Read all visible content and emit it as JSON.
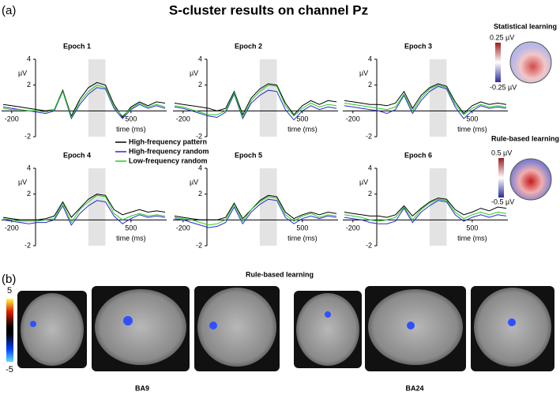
{
  "title": "S-cluster results on channel Pz",
  "panel_labels": [
    "(a)",
    "(b)"
  ],
  "chart_data": [
    {
      "type": "line",
      "title": "Epoch 1",
      "y_label": "µV",
      "x_label": "time (ms)",
      "x": [
        -250,
        -200,
        -150,
        -100,
        -50,
        0,
        50,
        100,
        150,
        200,
        250,
        300,
        350,
        400,
        450,
        500,
        550,
        600,
        650,
        700
      ],
      "series": [
        {
          "color": "#000000",
          "values": [
            0.5,
            0.4,
            0.3,
            0.2,
            0.1,
            0.0,
            0.1,
            1.6,
            -0.4,
            0.9,
            1.8,
            2.2,
            2.0,
            0.5,
            -0.5,
            0.3,
            0.7,
            0.4,
            0.7,
            0.6
          ]
        },
        {
          "color": "#2a2ad0",
          "values": [
            0.3,
            0.2,
            0.1,
            0.0,
            -0.1,
            -0.2,
            0.0,
            1.5,
            -0.6,
            0.5,
            1.3,
            1.8,
            1.7,
            0.2,
            -0.6,
            0.1,
            0.5,
            0.2,
            0.4,
            0.2
          ]
        },
        {
          "color": "#22cc22",
          "values": [
            0.2,
            0.1,
            0.1,
            0.0,
            0.0,
            -0.1,
            0.1,
            1.5,
            -0.5,
            0.7,
            1.5,
            2.0,
            1.8,
            0.3,
            -0.4,
            0.2,
            0.6,
            0.3,
            0.5,
            0.3
          ]
        }
      ],
      "xlim": [
        -250,
        700
      ],
      "ylim": [
        -2,
        4
      ],
      "xticks": [
        -200,
        500
      ],
      "yticks": [
        -2,
        2,
        4
      ],
      "shaded": [
        250,
        350
      ]
    },
    {
      "type": "line",
      "title": "Epoch 2",
      "y_label": "µV",
      "x_label": "time (ms)",
      "x": [
        -250,
        -200,
        -150,
        -100,
        -50,
        0,
        50,
        100,
        150,
        200,
        250,
        300,
        350,
        400,
        450,
        500,
        550,
        600,
        650,
        700
      ],
      "series": [
        {
          "color": "#000000",
          "values": [
            0.6,
            0.5,
            0.4,
            0.3,
            0.2,
            0.0,
            0.2,
            1.5,
            -0.3,
            1.0,
            1.7,
            2.1,
            2.0,
            0.6,
            -0.3,
            0.4,
            0.8,
            0.5,
            0.8,
            0.7
          ]
        },
        {
          "color": "#2a2ad0",
          "values": [
            0.3,
            0.2,
            0.0,
            -0.2,
            -0.4,
            -0.5,
            -0.1,
            1.3,
            -0.6,
            0.6,
            1.2,
            1.6,
            1.5,
            0.1,
            -0.7,
            0.0,
            0.4,
            0.1,
            0.3,
            0.2
          ]
        },
        {
          "color": "#22cc22",
          "values": [
            0.4,
            0.3,
            0.1,
            -0.1,
            -0.3,
            -0.3,
            0.0,
            1.4,
            -0.5,
            0.8,
            1.5,
            2.0,
            1.9,
            0.4,
            -0.4,
            0.2,
            0.6,
            0.3,
            0.5,
            0.4
          ]
        }
      ],
      "xlim": [
        -250,
        700
      ],
      "ylim": [
        -2,
        4
      ],
      "xticks": [
        -200,
        500
      ],
      "yticks": [
        -2,
        2,
        4
      ],
      "shaded": [
        250,
        350
      ]
    },
    {
      "type": "line",
      "title": "Epoch 3",
      "y_label": "µV",
      "x_label": "time (ms)",
      "x": [
        -250,
        -200,
        -150,
        -100,
        -50,
        0,
        50,
        100,
        150,
        200,
        250,
        300,
        350,
        400,
        450,
        500,
        550,
        600,
        650,
        700
      ],
      "series": [
        {
          "color": "#000000",
          "values": [
            0.8,
            0.7,
            0.6,
            0.5,
            0.5,
            0.4,
            0.6,
            1.5,
            0.2,
            1.2,
            1.8,
            2.1,
            1.9,
            0.7,
            -0.2,
            0.4,
            0.7,
            0.5,
            0.6,
            0.5
          ]
        },
        {
          "color": "#2a2ad0",
          "values": [
            0.4,
            0.3,
            0.2,
            0.1,
            0.0,
            -0.2,
            0.1,
            1.2,
            -0.2,
            0.8,
            1.5,
            1.9,
            1.7,
            0.3,
            -0.6,
            0.0,
            0.4,
            0.2,
            0.3,
            0.2
          ]
        },
        {
          "color": "#22cc22",
          "values": [
            0.6,
            0.5,
            0.4,
            0.3,
            0.2,
            0.1,
            0.3,
            1.3,
            0.0,
            1.0,
            1.7,
            2.0,
            1.8,
            0.5,
            -0.3,
            0.2,
            0.5,
            0.3,
            0.4,
            0.3
          ]
        }
      ],
      "xlim": [
        -250,
        700
      ],
      "ylim": [
        -2,
        4
      ],
      "xticks": [
        -200,
        500
      ],
      "yticks": [
        -2,
        2,
        4
      ],
      "shaded": [
        250,
        350
      ]
    },
    {
      "type": "line",
      "title": "Epoch 4",
      "y_label": "µV",
      "x_label": "time (ms)",
      "x": [
        -250,
        -200,
        -150,
        -100,
        -50,
        0,
        50,
        100,
        150,
        200,
        250,
        300,
        350,
        400,
        450,
        500,
        550,
        600,
        650,
        700
      ],
      "series": [
        {
          "name": "High-frequency pattern",
          "color": "#000000",
          "values": [
            0.2,
            0.1,
            0.0,
            0.0,
            0.0,
            0.1,
            0.3,
            1.4,
            0.2,
            0.9,
            1.6,
            2.0,
            1.9,
            0.8,
            0.4,
            0.6,
            0.8,
            0.6,
            0.7,
            0.6
          ]
        },
        {
          "name": "High-frequency random",
          "color": "#2a2ad0",
          "values": [
            0.0,
            -0.1,
            -0.2,
            -0.3,
            -0.2,
            -0.2,
            0.0,
            1.1,
            -0.4,
            0.5,
            1.1,
            1.5,
            1.4,
            0.3,
            -0.3,
            0.1,
            0.4,
            0.2,
            0.3,
            0.2
          ]
        },
        {
          "name": "Low-frequency random",
          "color": "#22cc22",
          "values": [
            0.1,
            0.0,
            -0.1,
            -0.1,
            -0.1,
            0.0,
            0.1,
            1.3,
            -0.2,
            0.8,
            1.4,
            1.9,
            1.8,
            0.5,
            0.0,
            0.3,
            0.5,
            0.3,
            0.4,
            0.3
          ]
        }
      ],
      "xlim": [
        -250,
        700
      ],
      "ylim": [
        -2,
        4
      ],
      "xticks": [
        -200,
        500
      ],
      "yticks": [
        -2,
        2,
        4
      ],
      "shaded": [
        250,
        350
      ]
    },
    {
      "type": "line",
      "title": "Epoch 5",
      "y_label": "µV",
      "x_label": "time (ms)",
      "x": [
        -250,
        -200,
        -150,
        -100,
        -50,
        0,
        50,
        100,
        150,
        200,
        250,
        300,
        350,
        400,
        450,
        500,
        550,
        600,
        650,
        700
      ],
      "series": [
        {
          "color": "#000000",
          "values": [
            0.3,
            0.2,
            0.1,
            0.0,
            0.0,
            0.0,
            0.2,
            1.3,
            0.1,
            0.8,
            1.5,
            1.9,
            1.8,
            0.6,
            0.1,
            0.4,
            0.6,
            0.4,
            0.6,
            0.5
          ]
        },
        {
          "color": "#2a2ad0",
          "values": [
            0.1,
            0.0,
            -0.2,
            -0.4,
            -0.6,
            -0.5,
            -0.2,
            1.0,
            -0.3,
            0.6,
            1.2,
            1.6,
            1.5,
            0.2,
            -0.3,
            0.1,
            0.3,
            0.1,
            0.3,
            0.2
          ]
        },
        {
          "color": "#22cc22",
          "values": [
            0.2,
            0.1,
            0.0,
            -0.2,
            -0.4,
            -0.3,
            0.0,
            1.2,
            -0.1,
            0.8,
            1.4,
            1.8,
            1.7,
            0.4,
            -0.1,
            0.3,
            0.5,
            0.2,
            0.4,
            0.3
          ]
        }
      ],
      "xlim": [
        -250,
        700
      ],
      "ylim": [
        -2,
        4
      ],
      "xticks": [
        -200,
        500
      ],
      "yticks": [
        -2,
        2,
        4
      ],
      "shaded": [
        250,
        350
      ]
    },
    {
      "type": "line",
      "title": "Epoch 6",
      "y_label": "µV",
      "x_label": "time (ms)",
      "x": [
        -250,
        -200,
        -150,
        -100,
        -50,
        0,
        50,
        100,
        150,
        200,
        250,
        300,
        350,
        400,
        450,
        500,
        550,
        600,
        650,
        700
      ],
      "series": [
        {
          "color": "#000000",
          "values": [
            0.6,
            0.5,
            0.4,
            0.3,
            0.3,
            0.2,
            0.4,
            1.1,
            0.3,
            0.9,
            1.4,
            1.7,
            1.6,
            0.8,
            0.4,
            0.6,
            0.9,
            0.7,
            1.0,
            0.9
          ]
        },
        {
          "color": "#2a2ad0",
          "values": [
            0.2,
            0.1,
            0.0,
            -0.2,
            -0.3,
            -0.3,
            -0.1,
            0.9,
            -0.2,
            0.6,
            1.1,
            1.5,
            1.4,
            0.4,
            -0.1,
            0.2,
            0.4,
            0.2,
            0.4,
            0.3
          ]
        },
        {
          "color": "#22cc22",
          "values": [
            0.4,
            0.3,
            0.2,
            0.0,
            -0.1,
            0.0,
            0.2,
            1.0,
            0.0,
            0.8,
            1.3,
            1.6,
            1.5,
            0.6,
            0.1,
            0.4,
            0.6,
            0.4,
            0.6,
            0.5
          ]
        }
      ],
      "xlim": [
        -250,
        700
      ],
      "ylim": [
        -2,
        4
      ],
      "xticks": [
        -200,
        500
      ],
      "yticks": [
        -2,
        2,
        4
      ],
      "shaded": [
        250,
        350
      ]
    }
  ],
  "topomaps": [
    {
      "title": "Statistical learning",
      "max_label": "0.25 µV",
      "min_label": "-0.25 µV"
    },
    {
      "title": "Rule-based learning",
      "max_label": "0.5 µV",
      "min_label": "-0.5 µV"
    }
  ],
  "brain": {
    "title": "Rule-based learning",
    "colorbar_max": "5",
    "colorbar_min": "-5",
    "regions": [
      "BA9",
      "BA24"
    ]
  }
}
